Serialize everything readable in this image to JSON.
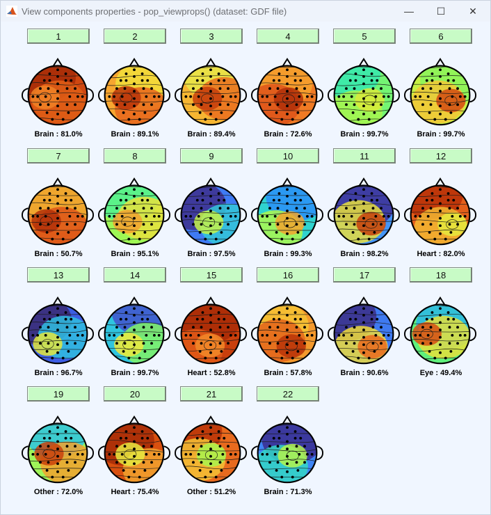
{
  "window": {
    "title": "View components properties - pop_viewprops() (dataset: GDF file)",
    "minimize_glyph": "—",
    "maximize_glyph": "☐",
    "close_glyph": "✕"
  },
  "components": [
    {
      "number": "1",
      "label": "Brain : 81.0%",
      "colors": [
        "#a62b07",
        "#cf4710",
        "#e05f16",
        "#f08226"
      ]
    },
    {
      "number": "2",
      "label": "Brain : 89.1%",
      "colors": [
        "#f2df3b",
        "#f7a630",
        "#e8661c",
        "#b93309"
      ]
    },
    {
      "number": "3",
      "label": "Brain : 89.4%",
      "colors": [
        "#e8e84a",
        "#f6b632",
        "#ea6e1f",
        "#c63e0c"
      ]
    },
    {
      "number": "4",
      "label": "Brain : 72.6%",
      "colors": [
        "#f6a22e",
        "#ef7a24",
        "#dd531a",
        "#b02f08"
      ]
    },
    {
      "number": "5",
      "label": "Brain : 99.7%",
      "colors": [
        "#36e7b0",
        "#74f573",
        "#a8f54f",
        "#d9ea3a"
      ]
    },
    {
      "number": "6",
      "label": "Brain : 99.7%",
      "colors": [
        "#88f55c",
        "#c7f044",
        "#f3c736",
        "#d24b12"
      ]
    },
    {
      "number": "7",
      "label": "Brain : 50.7%",
      "colors": [
        "#f0ad30",
        "#ec7f26",
        "#dd5518",
        "#b13008"
      ]
    },
    {
      "number": "8",
      "label": "Brain : 95.1%",
      "colors": [
        "#4ff193",
        "#9ef754",
        "#e8e23e",
        "#f2a230"
      ]
    },
    {
      "number": "9",
      "label": "Brain : 97.5%",
      "colors": [
        "#3e2f8c",
        "#3f7bf4",
        "#34c8d8",
        "#c5f348"
      ]
    },
    {
      "number": "10",
      "label": "Brain : 99.3%",
      "colors": [
        "#2a8ef8",
        "#2fd3cf",
        "#aef84c",
        "#f2a52f"
      ]
    },
    {
      "number": "11",
      "label": "Brain : 98.2%",
      "colors": [
        "#3d2e94",
        "#4495f7",
        "#e9df3d",
        "#c6400d"
      ]
    },
    {
      "number": "12",
      "label": "Heart : 82.0%",
      "colors": [
        "#b73008",
        "#e35f1a",
        "#f3b733",
        "#e5ea3d"
      ]
    },
    {
      "number": "13",
      "label": "Brain : 96.7%",
      "colors": [
        "#3b2a72",
        "#3d5ee4",
        "#30bee1",
        "#e4e83e"
      ]
    },
    {
      "number": "14",
      "label": "Brain : 99.7%",
      "colors": [
        "#4252ce",
        "#2fc4df",
        "#83f565",
        "#eee73e"
      ]
    },
    {
      "number": "15",
      "label": "Heart : 52.8%",
      "colors": [
        "#a92c07",
        "#c93f0c",
        "#e25b17",
        "#f28a29"
      ]
    },
    {
      "number": "16",
      "label": "Brain : 57.8%",
      "colors": [
        "#f5c335",
        "#f3992c",
        "#e3641b",
        "#b83408"
      ]
    },
    {
      "number": "17",
      "label": "Brain : 90.6%",
      "colors": [
        "#3c2e86",
        "#3f7af0",
        "#f0dc3b",
        "#ea6a1d"
      ]
    },
    {
      "number": "18",
      "label": "Eye : 49.4%",
      "colors": [
        "#2bb7e9",
        "#5ff07c",
        "#e6e13c",
        "#d84d13"
      ]
    },
    {
      "number": "19",
      "label": "Other : 72.0%",
      "colors": [
        "#2bc4e4",
        "#9ff559",
        "#f2a12e",
        "#c9410c"
      ]
    },
    {
      "number": "20",
      "label": "Heart : 75.4%",
      "colors": [
        "#a62b07",
        "#d9500f",
        "#f2a32f",
        "#e6ea40"
      ]
    },
    {
      "number": "21",
      "label": "Other : 51.2%",
      "colors": [
        "#b83207",
        "#e86a1e",
        "#f4c236",
        "#a8f54e"
      ]
    },
    {
      "number": "22",
      "label": "Brain : 71.3%",
      "colors": [
        "#3b2c8e",
        "#3f85f4",
        "#34d7c4",
        "#b4f44c"
      ]
    }
  ]
}
